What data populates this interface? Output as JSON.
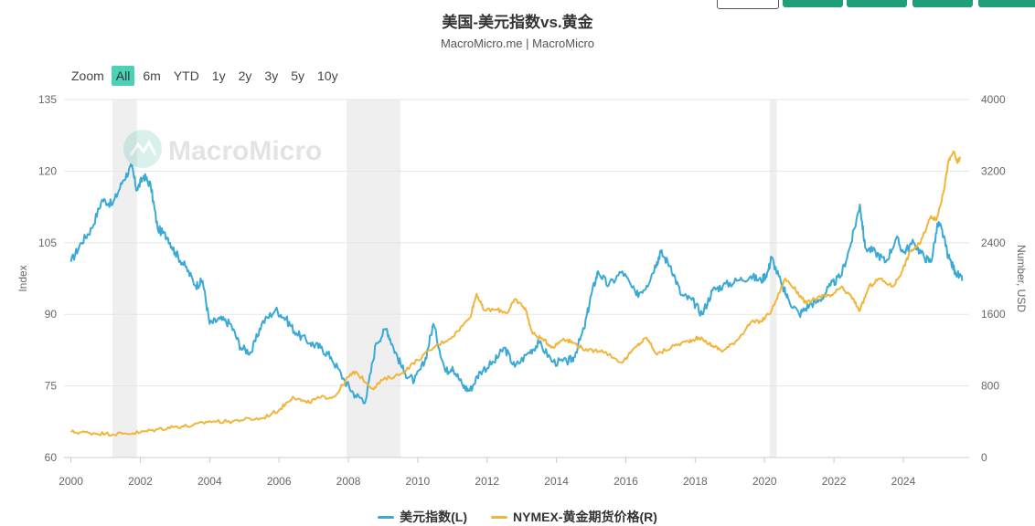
{
  "header": {
    "title": "美国-美元指数vs.黄金",
    "subtitle": "MacroMicro.me | MacroMicro"
  },
  "zoom": {
    "label": "Zoom",
    "options": [
      "All",
      "6m",
      "YTD",
      "1y",
      "2y",
      "3y",
      "5y",
      "10y"
    ],
    "active": "All"
  },
  "watermark": "MacroMicro",
  "chart_data": {
    "type": "line",
    "title": "美国-美元指数vs.黄金",
    "x_ticks": [
      "2000",
      "2002",
      "2004",
      "2006",
      "2008",
      "2010",
      "2012",
      "2014",
      "2016",
      "2018",
      "2020",
      "2022",
      "2024"
    ],
    "x_range": [
      1999.8,
      2025.9
    ],
    "left_axis": {
      "label": "Index",
      "range": [
        60,
        135
      ],
      "ticks": [
        "135",
        "120",
        "105",
        "90",
        "75",
        "60"
      ]
    },
    "right_axis": {
      "label": "Number, USD",
      "range": [
        0,
        4000
      ],
      "ticks": [
        "4000",
        "3200",
        "2400",
        "1600",
        "800",
        "0"
      ]
    },
    "recessions": [
      [
        2001.2,
        2001.9
      ],
      [
        2007.95,
        2009.5
      ],
      [
        2020.15,
        2020.35
      ]
    ],
    "series": [
      {
        "name": "美元指数(L)",
        "axis": "left",
        "color": "#3aa9d6",
        "points": [
          [
            2000.0,
            101
          ],
          [
            2000.3,
            105
          ],
          [
            2000.6,
            108
          ],
          [
            2000.9,
            114
          ],
          [
            2001.2,
            113
          ],
          [
            2001.5,
            118
          ],
          [
            2001.75,
            121
          ],
          [
            2001.9,
            116
          ],
          [
            2002.1,
            119
          ],
          [
            2002.3,
            117
          ],
          [
            2002.5,
            108
          ],
          [
            2002.8,
            106
          ],
          [
            2003.0,
            103
          ],
          [
            2003.3,
            100
          ],
          [
            2003.6,
            96
          ],
          [
            2003.8,
            97
          ],
          [
            2004.0,
            88
          ],
          [
            2004.3,
            89
          ],
          [
            2004.6,
            88
          ],
          [
            2004.9,
            83
          ],
          [
            2005.2,
            82
          ],
          [
            2005.5,
            88
          ],
          [
            2005.9,
            91
          ],
          [
            2006.2,
            89
          ],
          [
            2006.5,
            86
          ],
          [
            2006.9,
            84
          ],
          [
            2007.2,
            83
          ],
          [
            2007.5,
            81
          ],
          [
            2007.9,
            76
          ],
          [
            2008.2,
            73
          ],
          [
            2008.5,
            72
          ],
          [
            2008.8,
            84
          ],
          [
            2009.1,
            87
          ],
          [
            2009.3,
            83
          ],
          [
            2009.6,
            78
          ],
          [
            2009.9,
            76
          ],
          [
            2010.2,
            80
          ],
          [
            2010.45,
            88
          ],
          [
            2010.8,
            78
          ],
          [
            2011.0,
            79
          ],
          [
            2011.3,
            75
          ],
          [
            2011.5,
            74
          ],
          [
            2011.8,
            78
          ],
          [
            2012.2,
            80
          ],
          [
            2012.5,
            83
          ],
          [
            2012.8,
            79
          ],
          [
            2013.2,
            82
          ],
          [
            2013.5,
            84
          ],
          [
            2013.9,
            80
          ],
          [
            2014.3,
            80
          ],
          [
            2014.5,
            81
          ],
          [
            2014.8,
            87
          ],
          [
            2015.0,
            94
          ],
          [
            2015.2,
            99
          ],
          [
            2015.5,
            96
          ],
          [
            2015.9,
            99
          ],
          [
            2016.3,
            94
          ],
          [
            2016.6,
            96
          ],
          [
            2016.9,
            101
          ],
          [
            2017.0,
            103
          ],
          [
            2017.3,
            100
          ],
          [
            2017.6,
            94
          ],
          [
            2017.9,
            93
          ],
          [
            2018.2,
            90
          ],
          [
            2018.5,
            95
          ],
          [
            2018.8,
            96
          ],
          [
            2019.2,
            97
          ],
          [
            2019.6,
            98
          ],
          [
            2019.9,
            97
          ],
          [
            2020.1,
            99
          ],
          [
            2020.2,
            102
          ],
          [
            2020.5,
            96
          ],
          [
            2020.7,
            93
          ],
          [
            2021.0,
            90
          ],
          [
            2021.3,
            92
          ],
          [
            2021.6,
            93
          ],
          [
            2021.9,
            96
          ],
          [
            2022.2,
            98
          ],
          [
            2022.5,
            105
          ],
          [
            2022.75,
            113
          ],
          [
            2022.9,
            104
          ],
          [
            2023.2,
            103
          ],
          [
            2023.5,
            101
          ],
          [
            2023.8,
            106
          ],
          [
            2024.0,
            103
          ],
          [
            2024.3,
            105
          ],
          [
            2024.6,
            102
          ],
          [
            2024.8,
            101
          ],
          [
            2025.0,
            109
          ],
          [
            2025.1,
            108
          ],
          [
            2025.3,
            102
          ],
          [
            2025.5,
            99
          ],
          [
            2025.7,
            97
          ]
        ]
      },
      {
        "name": "NYMEX-黄金期货价格(R)",
        "axis": "right",
        "color": "#f2b53b",
        "points": [
          [
            2000.0,
            285
          ],
          [
            2000.5,
            278
          ],
          [
            2001.0,
            265
          ],
          [
            2001.5,
            265
          ],
          [
            2002.0,
            280
          ],
          [
            2002.5,
            315
          ],
          [
            2003.0,
            345
          ],
          [
            2003.5,
            355
          ],
          [
            2004.0,
            405
          ],
          [
            2004.5,
            400
          ],
          [
            2005.0,
            425
          ],
          [
            2005.5,
            435
          ],
          [
            2006.0,
            530
          ],
          [
            2006.4,
            680
          ],
          [
            2006.8,
            610
          ],
          [
            2007.2,
            670
          ],
          [
            2007.6,
            680
          ],
          [
            2008.0,
            900
          ],
          [
            2008.2,
            960
          ],
          [
            2008.7,
            770
          ],
          [
            2009.0,
            870
          ],
          [
            2009.5,
            930
          ],
          [
            2010.0,
            1090
          ],
          [
            2010.5,
            1240
          ],
          [
            2011.0,
            1350
          ],
          [
            2011.5,
            1560
          ],
          [
            2011.7,
            1830
          ],
          [
            2011.9,
            1650
          ],
          [
            2012.3,
            1650
          ],
          [
            2012.6,
            1620
          ],
          [
            2012.8,
            1770
          ],
          [
            2013.1,
            1670
          ],
          [
            2013.3,
            1390
          ],
          [
            2013.6,
            1320
          ],
          [
            2013.9,
            1230
          ],
          [
            2014.2,
            1330
          ],
          [
            2014.5,
            1280
          ],
          [
            2014.9,
            1190
          ],
          [
            2015.3,
            1200
          ],
          [
            2015.9,
            1060
          ],
          [
            2016.3,
            1240
          ],
          [
            2016.6,
            1340
          ],
          [
            2016.9,
            1150
          ],
          [
            2017.4,
            1250
          ],
          [
            2017.8,
            1300
          ],
          [
            2018.1,
            1340
          ],
          [
            2018.5,
            1250
          ],
          [
            2018.8,
            1190
          ],
          [
            2019.2,
            1310
          ],
          [
            2019.6,
            1510
          ],
          [
            2019.9,
            1520
          ],
          [
            2020.2,
            1640
          ],
          [
            2020.6,
            2000
          ],
          [
            2020.9,
            1870
          ],
          [
            2021.2,
            1720
          ],
          [
            2021.6,
            1800
          ],
          [
            2021.9,
            1800
          ],
          [
            2022.2,
            1900
          ],
          [
            2022.5,
            1800
          ],
          [
            2022.75,
            1640
          ],
          [
            2023.0,
            1900
          ],
          [
            2023.3,
            2000
          ],
          [
            2023.7,
            1910
          ],
          [
            2023.95,
            2070
          ],
          [
            2024.2,
            2300
          ],
          [
            2024.5,
            2400
          ],
          [
            2024.8,
            2700
          ],
          [
            2024.95,
            2650
          ],
          [
            2025.15,
            2950
          ],
          [
            2025.3,
            3300
          ],
          [
            2025.45,
            3420
          ],
          [
            2025.55,
            3300
          ],
          [
            2025.65,
            3350
          ]
        ]
      }
    ]
  },
  "legend": {
    "dxy": {
      "label": "美元指数(L)",
      "color": "#3aa9d6"
    },
    "gold": {
      "label": "NYMEX-黄金期货价格(R)",
      "color": "#f2b53b"
    }
  }
}
